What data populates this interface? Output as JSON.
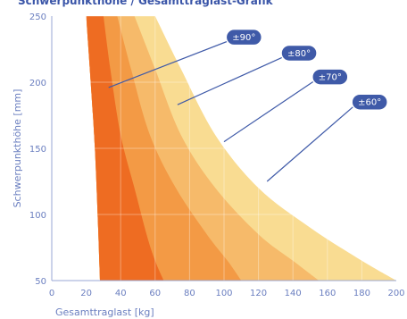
{
  "title": "Schwerpunkthöhe / Gesamttraglast-Grafik",
  "chart_data": {
    "type": "area",
    "xlabel": "Gesamttraglast [kg]",
    "ylabel": "Schwerpunkthöhe [mm]",
    "xlim": [
      0,
      200
    ],
    "ylim": [
      50,
      250
    ],
    "x_ticks": [
      "0",
      "20",
      "40",
      "60",
      "80",
      "100",
      "120",
      "140",
      "160",
      "180",
      "200"
    ],
    "y_ticks": [
      "50",
      "100",
      "150",
      "200",
      "250"
    ],
    "grid": true,
    "series": [
      {
        "name": "±60°",
        "color": "#f9dc92",
        "points": [
          [
            60,
            250
          ],
          [
            75,
            210
          ],
          [
            95,
            160
          ],
          [
            120,
            120
          ],
          [
            150,
            90
          ],
          [
            180,
            65
          ],
          [
            200,
            50
          ]
        ]
      },
      {
        "name": "±70°",
        "color": "#f6ba6a",
        "points": [
          [
            48,
            250
          ],
          [
            60,
            210
          ],
          [
            75,
            160
          ],
          [
            95,
            120
          ],
          [
            120,
            85
          ],
          [
            140,
            65
          ],
          [
            155,
            50
          ]
        ]
      },
      {
        "name": "±80°",
        "color": "#f39a45",
        "points": [
          [
            38,
            250
          ],
          [
            46,
            210
          ],
          [
            57,
            160
          ],
          [
            72,
            120
          ],
          [
            90,
            85
          ],
          [
            102,
            65
          ],
          [
            110,
            50
          ]
        ]
      },
      {
        "name": "±90°",
        "color": "#ee6c22",
        "left_boundary": [
          [
            20,
            250
          ],
          [
            25,
            150
          ],
          [
            28,
            50
          ]
        ],
        "points": [
          [
            30,
            250
          ],
          [
            34,
            210
          ],
          [
            40,
            160
          ],
          [
            48,
            120
          ],
          [
            55,
            85
          ],
          [
            60,
            65
          ],
          [
            65,
            50
          ]
        ]
      }
    ],
    "annotations": [
      {
        "label": "±90°",
        "point": [
          33,
          196
        ],
        "badge": [
          110,
          234
        ]
      },
      {
        "label": "±80°",
        "point": [
          73,
          183
        ],
        "badge": [
          142,
          222
        ]
      },
      {
        "label": "±70°",
        "point": [
          100,
          155
        ],
        "badge": [
          160,
          204
        ]
      },
      {
        "label": "±60°",
        "point": [
          125,
          125
        ],
        "badge": [
          183,
          185
        ]
      }
    ]
  }
}
